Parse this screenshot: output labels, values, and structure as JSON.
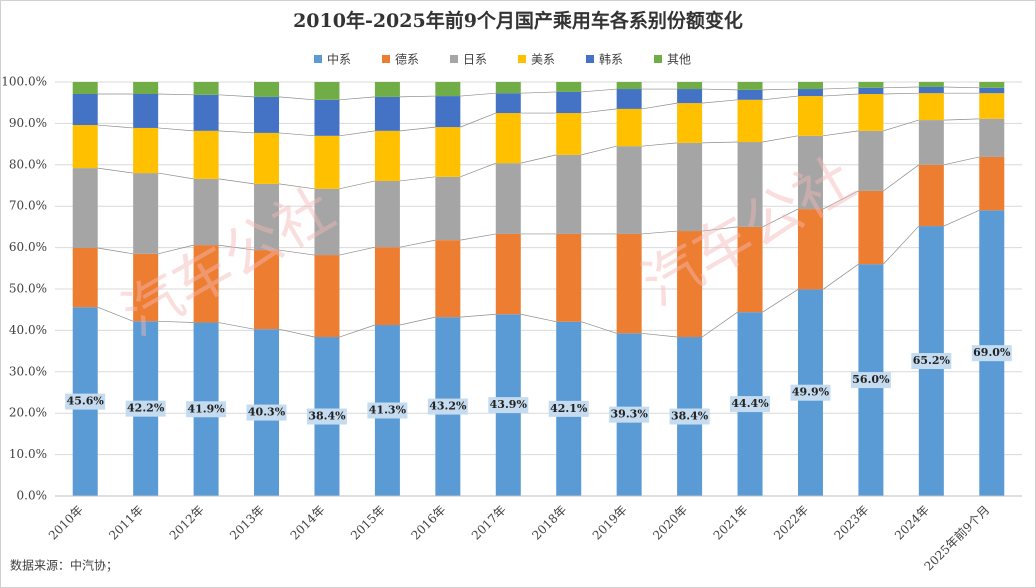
{
  "chart_data": {
    "type": "stacked-bar",
    "title": "2010年-2025年前9个月国产乘用车各系别份额变化",
    "source": "数据来源：中汽协；",
    "watermark": "汽车公社",
    "categories": [
      "2010年",
      "2011年",
      "2012年",
      "2013年",
      "2014年",
      "2015年",
      "2016年",
      "2017年",
      "2018年",
      "2019年",
      "2020年",
      "2021年",
      "2022年",
      "2023年",
      "2024年",
      "2025年前9个月"
    ],
    "series": [
      {
        "name": "中系",
        "color": "#5b9bd5",
        "values": [
          45.6,
          42.2,
          41.9,
          40.3,
          38.4,
          41.3,
          43.2,
          43.9,
          42.1,
          39.3,
          38.4,
          44.4,
          49.9,
          56.0,
          65.2,
          69.0
        ],
        "value_labels": [
          "45.6%",
          "42.2%",
          "41.9%",
          "40.3%",
          "38.4%",
          "41.3%",
          "43.2%",
          "43.9%",
          "42.1%",
          "39.3%",
          "38.4%",
          "44.4%",
          "49.9%",
          "56.0%",
          "65.2%",
          "69.0%"
        ]
      },
      {
        "name": "德系",
        "color": "#ed7d31",
        "values": [
          14.3,
          16.3,
          18.7,
          19.1,
          19.8,
          18.8,
          18.6,
          19.4,
          21.2,
          24.0,
          25.6,
          20.6,
          19.4,
          17.7,
          14.8,
          12.9
        ]
      },
      {
        "name": "日系",
        "color": "#a5a5a5",
        "values": [
          19.3,
          19.5,
          16.0,
          16.0,
          16.0,
          16.0,
          15.3,
          17.1,
          19.1,
          21.2,
          21.3,
          20.5,
          17.7,
          14.5,
          10.8,
          9.2
        ]
      },
      {
        "name": "美系",
        "color": "#ffc000",
        "values": [
          10.4,
          10.9,
          11.6,
          12.3,
          12.8,
          12.1,
          12.0,
          12.1,
          10.1,
          9.0,
          9.6,
          10.2,
          9.6,
          8.9,
          6.5,
          6.2
        ]
      },
      {
        "name": "韩系",
        "color": "#4472c4",
        "values": [
          7.5,
          8.2,
          8.7,
          8.7,
          8.7,
          8.2,
          7.5,
          4.8,
          5.1,
          4.8,
          3.4,
          2.4,
          1.7,
          1.5,
          1.5,
          1.3
        ]
      },
      {
        "name": "其他",
        "color": "#70ad47",
        "values": [
          2.9,
          2.9,
          3.1,
          3.6,
          4.3,
          3.6,
          3.4,
          2.7,
          2.4,
          1.7,
          1.7,
          1.9,
          1.7,
          1.4,
          1.2,
          1.4
        ]
      }
    ],
    "ylim": [
      0,
      100
    ],
    "yticks": [
      {
        "value": 0,
        "label": "0.0%"
      },
      {
        "value": 10,
        "label": "10.0%"
      },
      {
        "value": 20,
        "label": "20.0%"
      },
      {
        "value": 30,
        "label": "30.0%"
      },
      {
        "value": 40,
        "label": "40.0%"
      },
      {
        "value": 50,
        "label": "50.0%"
      },
      {
        "value": 60,
        "label": "60.0%"
      },
      {
        "value": 70,
        "label": "70.0%"
      },
      {
        "value": 80,
        "label": "80.0%"
      },
      {
        "value": 90,
        "label": "90.0%"
      },
      {
        "value": 100,
        "label": "100.0%"
      }
    ],
    "grid": true,
    "legend": "top"
  }
}
